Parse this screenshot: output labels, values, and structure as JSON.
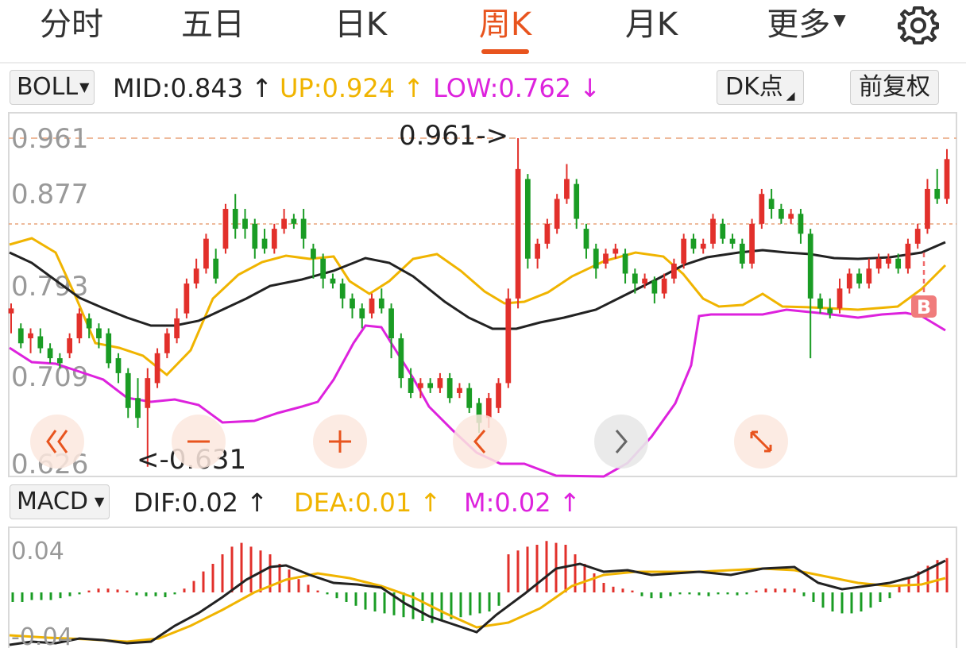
{
  "tabs": [
    {
      "label": "分时"
    },
    {
      "label": "五日"
    },
    {
      "label": "日K"
    },
    {
      "label": "周K",
      "active": true
    },
    {
      "label": "月K"
    },
    {
      "label": "更多"
    }
  ],
  "settings_icon": "gear-icon",
  "colors": {
    "up": "#e2302b",
    "down": "#1a9c24",
    "mid": "#222222",
    "upper": "#f0b400",
    "lower": "#dd22dd",
    "accent": "#e8541e"
  },
  "boll": {
    "selector": "BOLL",
    "mid": "MID:0.843",
    "up": "UP:0.924",
    "low": "LOW:0.762",
    "arrow_up": "↑",
    "arrow_down": "↓"
  },
  "buttons": {
    "dk": "DK点",
    "fq": "前复权"
  },
  "macd": {
    "selector": "MACD",
    "dif": "DIF:0.02",
    "dea": "DEA:0.01",
    "m": "M:0.02",
    "arrow": "↑"
  },
  "chart_data": [
    {
      "type": "candlestick",
      "indicator": "BOLL",
      "y_ticks": [
        "0.961",
        "0.877",
        "0.793",
        "0.709",
        "0.626"
      ],
      "ylim": [
        0.626,
        0.961
      ],
      "annotations": [
        {
          "text": "0.961->",
          "value": 0.961
        },
        {
          "text": "<-0.631",
          "value": 0.631
        },
        {
          "text": "B",
          "value": 0.762
        }
      ],
      "overlay_controls": [
        "double-left-icon",
        "minus-icon",
        "plus-icon",
        "left-icon",
        "right-icon",
        "expand-icon"
      ],
      "candles": [
        [
          0.785,
          0.79,
          0.765,
          0.795
        ],
        [
          0.77,
          0.755,
          0.75,
          0.775
        ],
        [
          0.76,
          0.765,
          0.745,
          0.77
        ],
        [
          0.762,
          0.75,
          0.745,
          0.77
        ],
        [
          0.75,
          0.74,
          0.735,
          0.755
        ],
        [
          0.74,
          0.735,
          0.73,
          0.745
        ],
        [
          0.745,
          0.76,
          0.74,
          0.765
        ],
        [
          0.76,
          0.785,
          0.755,
          0.79
        ],
        [
          0.78,
          0.77,
          0.76,
          0.785
        ],
        [
          0.77,
          0.76,
          0.75,
          0.775
        ],
        [
          0.765,
          0.735,
          0.73,
          0.77
        ],
        [
          0.74,
          0.725,
          0.715,
          0.745
        ],
        [
          0.725,
          0.69,
          0.68,
          0.73
        ],
        [
          0.7,
          0.68,
          0.67,
          0.72
        ],
        [
          0.69,
          0.72,
          0.631,
          0.73
        ],
        [
          0.715,
          0.745,
          0.71,
          0.75
        ],
        [
          0.745,
          0.765,
          0.74,
          0.77
        ],
        [
          0.76,
          0.78,
          0.755,
          0.79
        ],
        [
          0.785,
          0.815,
          0.78,
          0.82
        ],
        [
          0.815,
          0.83,
          0.81,
          0.84
        ],
        [
          0.83,
          0.86,
          0.825,
          0.865
        ],
        [
          0.84,
          0.82,
          0.815,
          0.85
        ],
        [
          0.85,
          0.89,
          0.845,
          0.895
        ],
        [
          0.89,
          0.87,
          0.86,
          0.905
        ],
        [
          0.88,
          0.87,
          0.86,
          0.89
        ],
        [
          0.875,
          0.85,
          0.84,
          0.88
        ],
        [
          0.86,
          0.85,
          0.845,
          0.87
        ],
        [
          0.85,
          0.87,
          0.845,
          0.875
        ],
        [
          0.87,
          0.88,
          0.865,
          0.89
        ],
        [
          0.88,
          0.875,
          0.87,
          0.885
        ],
        [
          0.88,
          0.86,
          0.85,
          0.89
        ],
        [
          0.85,
          0.84,
          0.82,
          0.855
        ],
        [
          0.84,
          0.82,
          0.81,
          0.845
        ],
        [
          0.82,
          0.815,
          0.81,
          0.825
        ],
        [
          0.815,
          0.8,
          0.79,
          0.82
        ],
        [
          0.8,
          0.79,
          0.78,
          0.805
        ],
        [
          0.79,
          0.78,
          0.77,
          0.795
        ],
        [
          0.785,
          0.8,
          0.78,
          0.805
        ],
        [
          0.8,
          0.79,
          0.785,
          0.81
        ],
        [
          0.79,
          0.76,
          0.74,
          0.795
        ],
        [
          0.76,
          0.72,
          0.71,
          0.765
        ],
        [
          0.72,
          0.705,
          0.7,
          0.73
        ],
        [
          0.71,
          0.715,
          0.7,
          0.72
        ],
        [
          0.715,
          0.71,
          0.705,
          0.72
        ],
        [
          0.71,
          0.72,
          0.705,
          0.725
        ],
        [
          0.72,
          0.7,
          0.695,
          0.725
        ],
        [
          0.705,
          0.71,
          0.7,
          0.715
        ],
        [
          0.71,
          0.69,
          0.685,
          0.715
        ],
        [
          0.695,
          0.675,
          0.665,
          0.7
        ],
        [
          0.68,
          0.7,
          0.67,
          0.705
        ],
        [
          0.69,
          0.715,
          0.685,
          0.72
        ],
        [
          0.715,
          0.8,
          0.71,
          0.81
        ],
        [
          0.8,
          0.93,
          0.79,
          0.961
        ],
        [
          0.92,
          0.84,
          0.83,
          0.925
        ],
        [
          0.84,
          0.855,
          0.83,
          0.86
        ],
        [
          0.855,
          0.875,
          0.85,
          0.88
        ],
        [
          0.87,
          0.9,
          0.865,
          0.905
        ],
        [
          0.9,
          0.92,
          0.895,
          0.935
        ],
        [
          0.915,
          0.88,
          0.87,
          0.92
        ],
        [
          0.87,
          0.85,
          0.84,
          0.875
        ],
        [
          0.85,
          0.83,
          0.82,
          0.855
        ],
        [
          0.835,
          0.845,
          0.83,
          0.85
        ],
        [
          0.845,
          0.85,
          0.84,
          0.855
        ],
        [
          0.845,
          0.825,
          0.815,
          0.85
        ],
        [
          0.825,
          0.815,
          0.805,
          0.83
        ],
        [
          0.815,
          0.82,
          0.81,
          0.825
        ],
        [
          0.818,
          0.805,
          0.795,
          0.822
        ],
        [
          0.805,
          0.82,
          0.8,
          0.825
        ],
        [
          0.82,
          0.835,
          0.815,
          0.84
        ],
        [
          0.835,
          0.86,
          0.83,
          0.865
        ],
        [
          0.86,
          0.85,
          0.845,
          0.865
        ],
        [
          0.85,
          0.855,
          0.845,
          0.86
        ],
        [
          0.855,
          0.88,
          0.85,
          0.885
        ],
        [
          0.875,
          0.86,
          0.855,
          0.88
        ],
        [
          0.86,
          0.855,
          0.85,
          0.865
        ],
        [
          0.855,
          0.835,
          0.83,
          0.86
        ],
        [
          0.835,
          0.875,
          0.83,
          0.88
        ],
        [
          0.875,
          0.905,
          0.87,
          0.91
        ],
        [
          0.9,
          0.89,
          0.88,
          0.91
        ],
        [
          0.89,
          0.88,
          0.875,
          0.895
        ],
        [
          0.88,
          0.885,
          0.875,
          0.89
        ],
        [
          0.885,
          0.865,
          0.855,
          0.89
        ],
        [
          0.865,
          0.8,
          0.74,
          0.87
        ],
        [
          0.8,
          0.79,
          0.785,
          0.805
        ],
        [
          0.79,
          0.785,
          0.78,
          0.8
        ],
        [
          0.79,
          0.81,
          0.785,
          0.82
        ],
        [
          0.81,
          0.825,
          0.805,
          0.83
        ],
        [
          0.825,
          0.815,
          0.81,
          0.83
        ],
        [
          0.815,
          0.83,
          0.81,
          0.84
        ],
        [
          0.83,
          0.84,
          0.825,
          0.845
        ],
        [
          0.835,
          0.84,
          0.83,
          0.845
        ],
        [
          0.84,
          0.83,
          0.825,
          0.845
        ],
        [
          0.83,
          0.855,
          0.825,
          0.86
        ],
        [
          0.855,
          0.87,
          0.85,
          0.875
        ],
        [
          0.87,
          0.91,
          0.865,
          0.92
        ],
        [
          0.91,
          0.9,
          0.895,
          0.93
        ],
        [
          0.9,
          0.94,
          0.895,
          0.95
        ]
      ]
    },
    {
      "type": "bar",
      "indicator": "MACD",
      "y_ticks": [
        "0.04",
        "-0.04"
      ],
      "ylim": [
        -0.04,
        0.04
      ]
    }
  ]
}
